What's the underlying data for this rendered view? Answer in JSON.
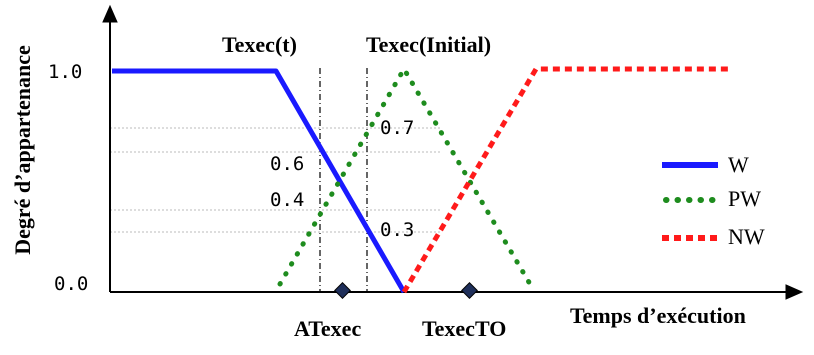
{
  "diagram": {
    "y_axis_label": "Degré d’appartenance",
    "x_axis_label": "Temps d’exécution",
    "y_tick_high": "1.0",
    "y_tick_low": "0.0",
    "top_label_left": "Texec(t)",
    "top_label_right": "Texec(Initial)",
    "value_labels": [
      "0.6",
      "0.4",
      "0.7",
      "0.3"
    ],
    "x_markers": [
      "ATexec",
      "TexecTO"
    ],
    "legend": [
      {
        "label": "W",
        "color": "#1a1aff",
        "style": "solid"
      },
      {
        "label": "PW",
        "color": "#1e8c1e",
        "style": "dotted"
      },
      {
        "label": "NW",
        "color": "#ff1a1a",
        "style": "dashed"
      }
    ],
    "colors": {
      "W": "#1a1aff",
      "PW": "#1e8c1e",
      "NW": "#ff1a1a",
      "marker": "#1f2f5a",
      "axis": "#000000",
      "guide": "#bbbbbb"
    }
  }
}
